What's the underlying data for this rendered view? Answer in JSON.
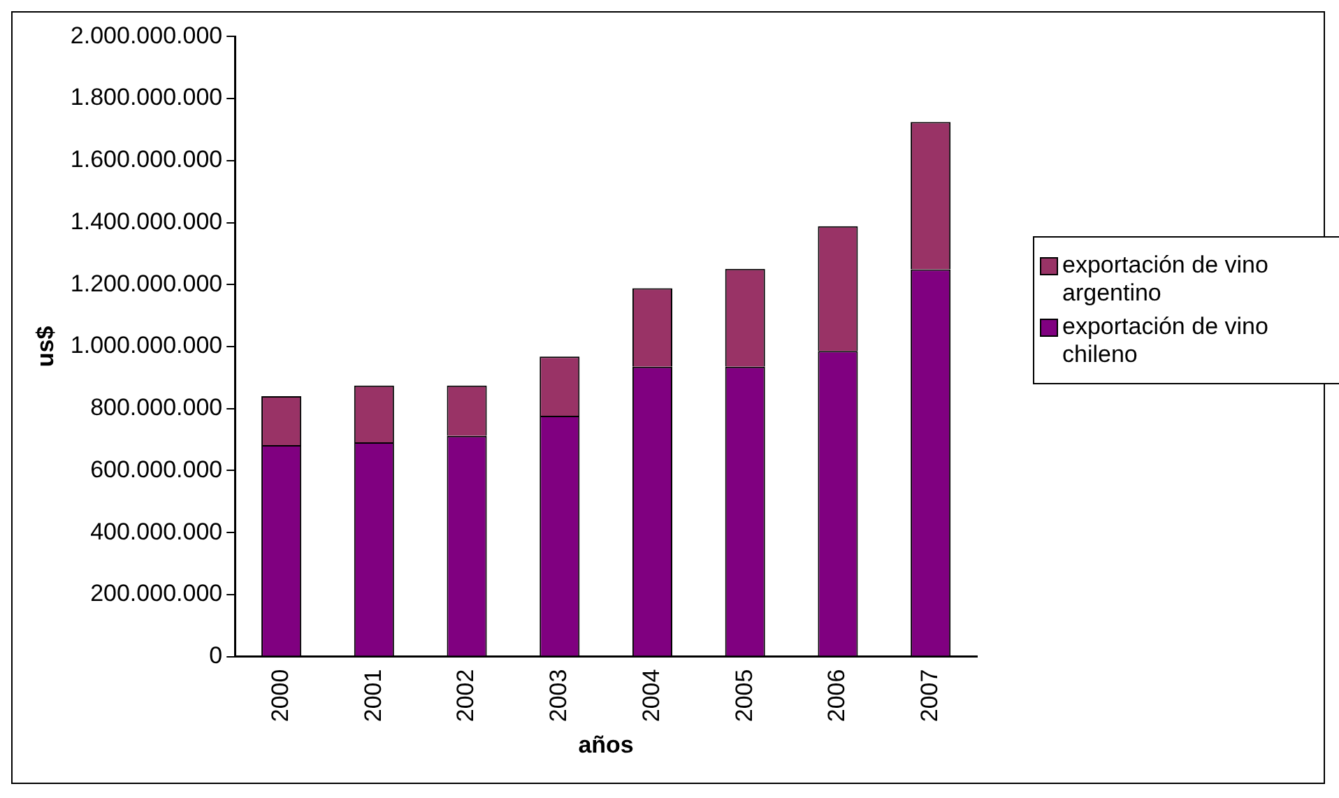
{
  "chart_data": {
    "type": "bar",
    "stacked": true,
    "xlabel": "años",
    "ylabel": "us$",
    "categories": [
      "2000",
      "2001",
      "2002",
      "2003",
      "2004",
      "2005",
      "2006",
      "2007"
    ],
    "series": [
      {
        "name": "exportación de vino chileno",
        "color": "#800080",
        "values": [
          682000000,
          691000000,
          712000000,
          777000000,
          935000000,
          935000000,
          986000000,
          1249000000
        ]
      },
      {
        "name": "exportación de vino argentino",
        "color": "#993366",
        "values": [
          158000000,
          183000000,
          162000000,
          191000000,
          253000000,
          316000000,
          402000000,
          476000000
        ]
      }
    ],
    "ylim": [
      0,
      2000000000
    ],
    "yticks": [
      {
        "value": 0,
        "label": "0"
      },
      {
        "value": 200000000,
        "label": "200.000.000"
      },
      {
        "value": 400000000,
        "label": "400.000.000"
      },
      {
        "value": 600000000,
        "label": "600.000.000"
      },
      {
        "value": 800000000,
        "label": "800.000.000"
      },
      {
        "value": 1000000000,
        "label": "1.000.000.000"
      },
      {
        "value": 1200000000,
        "label": "1.200.000.000"
      },
      {
        "value": 1400000000,
        "label": "1.400.000.000"
      },
      {
        "value": 1600000000,
        "label": "1.600.000.000"
      },
      {
        "value": 1800000000,
        "label": "1.800.000.000"
      },
      {
        "value": 2000000000,
        "label": "2.000.000.000"
      }
    ],
    "grid": false,
    "legend": "right"
  }
}
